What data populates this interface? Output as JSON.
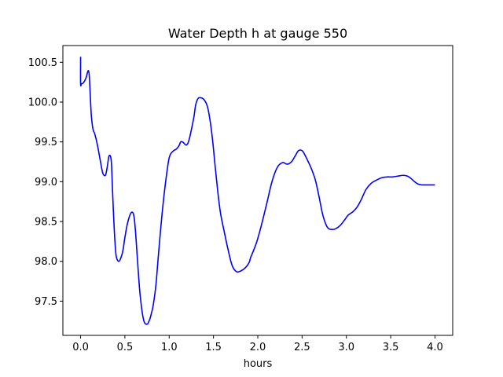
{
  "chart_data": {
    "type": "line",
    "title": "Water Depth h at gauge 550",
    "xlabel": "hours",
    "ylabel": "",
    "xlim": [
      -0.2,
      4.2
    ],
    "ylim": [
      97.07,
      100.71
    ],
    "xticks": [
      0.0,
      0.5,
      1.0,
      1.5,
      2.0,
      2.5,
      3.0,
      3.5,
      4.0
    ],
    "xtick_labels": [
      "0.0",
      "0.5",
      "1.0",
      "1.5",
      "2.0",
      "2.5",
      "3.0",
      "3.5",
      "4.0"
    ],
    "yticks": [
      97.5,
      98.0,
      98.5,
      99.0,
      99.5,
      100.0,
      100.5
    ],
    "ytick_labels": [
      "97.5",
      "98.0",
      "98.5",
      "99.0",
      "99.5",
      "100.0",
      "100.5"
    ],
    "grid": false,
    "series": [
      {
        "color": "#0000ff",
        "x": [
          0.0,
          0.0,
          0.01,
          0.03,
          0.06,
          0.08,
          0.09,
          0.1,
          0.12,
          0.14,
          0.16,
          0.19,
          0.22,
          0.25,
          0.28,
          0.3,
          0.32,
          0.34,
          0.35,
          0.36,
          0.38,
          0.4,
          0.43,
          0.46,
          0.48,
          0.5,
          0.53,
          0.57,
          0.6,
          0.62,
          0.64,
          0.67,
          0.71,
          0.75,
          0.78,
          0.8,
          0.82,
          0.85,
          0.88,
          0.92,
          0.96,
          1.0,
          1.04,
          1.08,
          1.11,
          1.13,
          1.15,
          1.17,
          1.19,
          1.21,
          1.23,
          1.25,
          1.28,
          1.3,
          1.33,
          1.37,
          1.4,
          1.43,
          1.46,
          1.49,
          1.52,
          1.55,
          1.58,
          1.62,
          1.66,
          1.71,
          1.76,
          1.81,
          1.86,
          1.9,
          1.92,
          1.95,
          1.99,
          2.04,
          2.1,
          2.16,
          2.22,
          2.28,
          2.33,
          2.38,
          2.42,
          2.46,
          2.5,
          2.53,
          2.57,
          2.61,
          2.65,
          2.69,
          2.73,
          2.77,
          2.8,
          2.84,
          2.88,
          2.93,
          2.98,
          3.02,
          3.07,
          3.12,
          3.17,
          3.22,
          3.28,
          3.34,
          3.4,
          3.46,
          3.52,
          3.58,
          3.64,
          3.69,
          3.73,
          3.77,
          3.81,
          3.85,
          3.89,
          3.93,
          3.97,
          4.0
        ],
        "y": [
          100.57,
          100.23,
          100.23,
          100.24,
          100.3,
          100.38,
          100.39,
          100.3,
          99.85,
          99.66,
          99.6,
          99.46,
          99.28,
          99.11,
          99.08,
          99.18,
          99.32,
          99.31,
          99.2,
          98.9,
          98.4,
          98.08,
          98.0,
          98.06,
          98.15,
          98.3,
          98.48,
          98.61,
          98.58,
          98.37,
          98.05,
          97.6,
          97.27,
          97.21,
          97.27,
          97.35,
          97.45,
          97.7,
          98.1,
          98.6,
          99.0,
          99.3,
          99.38,
          99.41,
          99.45,
          99.5,
          99.5,
          99.48,
          99.46,
          99.48,
          99.55,
          99.65,
          99.82,
          99.97,
          100.05,
          100.05,
          100.02,
          99.95,
          99.78,
          99.52,
          99.18,
          98.86,
          98.6,
          98.38,
          98.17,
          97.95,
          97.87,
          97.88,
          97.92,
          97.98,
          98.05,
          98.13,
          98.25,
          98.45,
          98.72,
          99.0,
          99.18,
          99.24,
          99.22,
          99.25,
          99.32,
          99.39,
          99.39,
          99.34,
          99.25,
          99.15,
          99.02,
          98.82,
          98.6,
          98.46,
          98.41,
          98.4,
          98.41,
          98.45,
          98.52,
          98.58,
          98.62,
          98.68,
          98.78,
          98.9,
          98.98,
          99.02,
          99.05,
          99.06,
          99.06,
          99.07,
          99.08,
          99.07,
          99.04,
          99.0,
          98.97,
          98.96,
          98.96,
          98.96,
          98.96,
          98.96
        ]
      }
    ]
  }
}
